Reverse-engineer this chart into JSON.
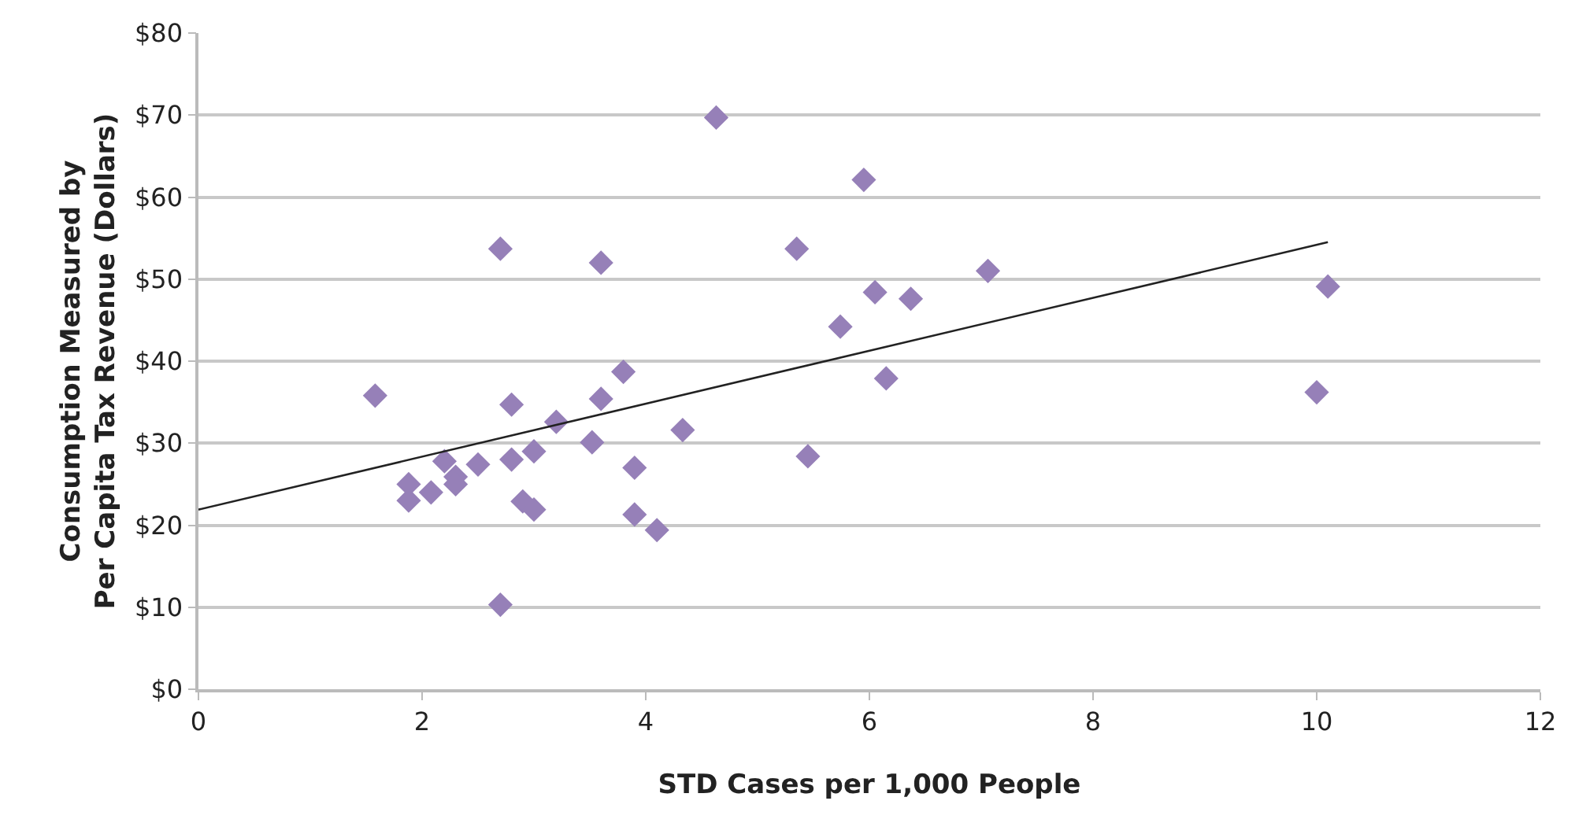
{
  "chart_data": {
    "type": "scatter",
    "xlabel": "STD Cases per 1,000 People",
    "ylabel": "Consumption Measured by\nPer Capita Tax Revenue (Dollars)",
    "xlim": [
      0,
      12
    ],
    "xticks": [
      0,
      2,
      4,
      6,
      8,
      10,
      12
    ],
    "ylim": [
      0,
      80
    ],
    "yticks": [
      {
        "value": 0,
        "label": "$0"
      },
      {
        "value": 10,
        "label": "$10"
      },
      {
        "value": 20,
        "label": "$20"
      },
      {
        "value": 30,
        "label": "$30"
      },
      {
        "value": 40,
        "label": "$40"
      },
      {
        "value": 50,
        "label": "$50"
      },
      {
        "value": 60,
        "label": "$60"
      },
      {
        "value": 70,
        "label": "$70"
      },
      {
        "value": 80,
        "label": "$80"
      }
    ],
    "grid": "y",
    "marker": "diamond",
    "series": [
      {
        "color": "#9680b8",
        "x": [
          1.58,
          1.88,
          1.88,
          2.08,
          2.2,
          2.3,
          2.3,
          2.5,
          2.7,
          2.7,
          2.8,
          2.8,
          2.9,
          3.0,
          3.0,
          3.2,
          3.52,
          3.6,
          3.6,
          3.8,
          3.9,
          3.9,
          4.1,
          4.33,
          4.63,
          5.35,
          5.45,
          5.74,
          5.95,
          6.05,
          6.37,
          6.15,
          7.06,
          10.0,
          10.1
        ],
        "values": [
          35.8,
          23.0,
          25.0,
          24.0,
          27.8,
          25.9,
          25.0,
          27.4,
          53.7,
          10.3,
          28.0,
          34.7,
          22.9,
          21.9,
          29.0,
          32.6,
          30.1,
          52.0,
          35.4,
          38.7,
          27.0,
          21.3,
          19.4,
          31.6,
          69.7,
          53.7,
          28.4,
          44.2,
          62.1,
          48.4,
          47.6,
          37.9,
          51.0,
          36.2,
          49.1
        ]
      },
      {
        "type": "line",
        "color": "#222222",
        "marker": "none",
        "x": [
          0,
          10.1
        ],
        "values": [
          21.9,
          54.5
        ]
      }
    ]
  }
}
